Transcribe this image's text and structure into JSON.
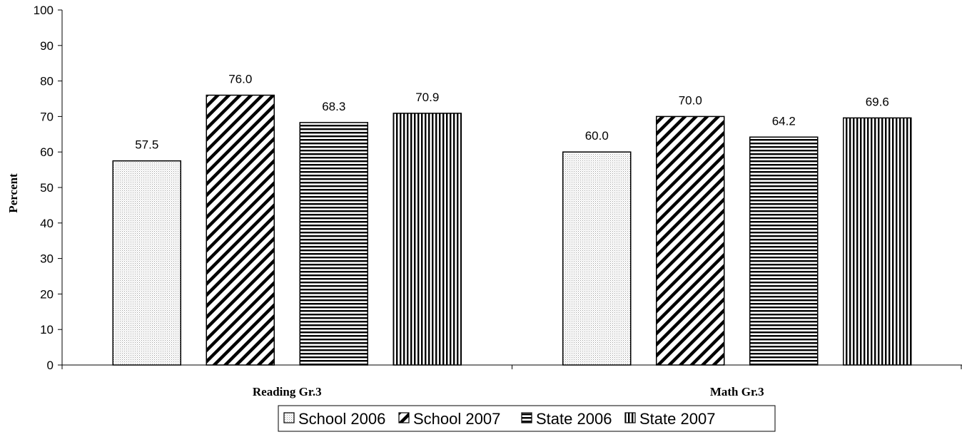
{
  "chart_data": {
    "type": "bar",
    "categories": [
      "Reading Gr.3",
      "Math Gr.3"
    ],
    "series": [
      {
        "name": "School 2006",
        "values": [
          57.5,
          60.0
        ],
        "labels": [
          "57.5",
          "60.0"
        ],
        "pattern": "dots"
      },
      {
        "name": "School 2007",
        "values": [
          76.0,
          70.0
        ],
        "labels": [
          "76.0",
          "70.0"
        ],
        "pattern": "diagonal"
      },
      {
        "name": "State 2006",
        "values": [
          68.3,
          64.2
        ],
        "labels": [
          "68.3",
          "64.2"
        ],
        "pattern": "horizontal"
      },
      {
        "name": "State 2007",
        "values": [
          70.9,
          69.6
        ],
        "labels": [
          "70.9",
          "69.6"
        ],
        "pattern": "vertical"
      }
    ],
    "title": "",
    "xlabel": "",
    "ylabel": "Percent",
    "ylim": [
      0,
      100
    ],
    "yticks": [
      "0",
      "10",
      "20",
      "30",
      "40",
      "50",
      "60",
      "70",
      "80",
      "90",
      "100"
    ],
    "grid": false,
    "legend_position": "bottom",
    "colors": {
      "bar_fill": "#ffffff",
      "stroke": "#000000",
      "dots": "#bdbdbd"
    }
  }
}
